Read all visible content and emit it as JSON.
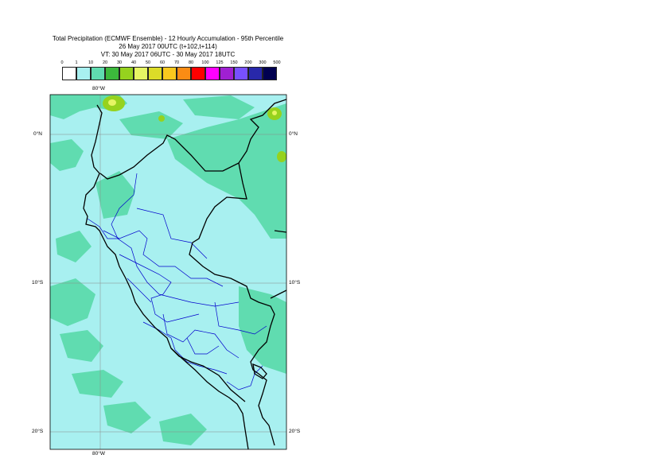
{
  "title": {
    "line1": "Total Precipitation (ECMWF Ensemble) - 12 Hourly Accumulation - 95th Percentile",
    "line2": "26 May 2017 00UTC (t+102,t+114)",
    "line3": "VT: 30 May 2017 06UTC - 30 May 2017 18UTC"
  },
  "legend": {
    "levels": [
      "0",
      "1",
      "10",
      "20",
      "30",
      "40",
      "50",
      "60",
      "70",
      "80",
      "100",
      "125",
      "150",
      "200",
      "300",
      "500"
    ],
    "colors": [
      "#ffffff",
      "#a8f0f0",
      "#60dcb0",
      "#3cb93c",
      "#96d21e",
      "#e6f564",
      "#dcdc28",
      "#fac81e",
      "#fa8c14",
      "#ff0000",
      "#ff00ff",
      "#a020d2",
      "#7850ff",
      "#2828aa",
      "#000050"
    ]
  },
  "axes": {
    "lon_top": "80°W",
    "lon_bottom": "80°W",
    "lat_left": [
      "0°N",
      "10°S",
      "20°S"
    ],
    "lat_right": [
      "0°N",
      "10°S",
      "20°S"
    ]
  },
  "map_colors": {
    "land_base": "#a8f0f0",
    "sea": "#a8f0f0",
    "wet": "#60dcb0",
    "heavy": "#96d21e",
    "peak": "#e6f564",
    "country_border": "#000000",
    "admin_border": "#0000cc",
    "graticule": "#8a8a8a"
  }
}
